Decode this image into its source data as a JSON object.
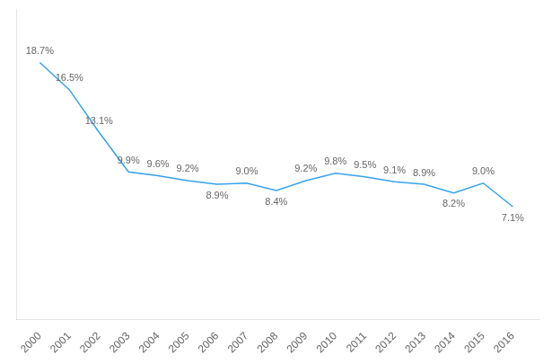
{
  "chart_data": {
    "type": "line",
    "x": [
      2000,
      2001,
      2002,
      2003,
      2004,
      2005,
      2006,
      2007,
      2008,
      2009,
      2010,
      2011,
      2012,
      2013,
      2014,
      2015,
      2016
    ],
    "values": [
      18.7,
      16.5,
      13.1,
      9.9,
      9.6,
      9.2,
      8.9,
      9.0,
      8.4,
      9.2,
      9.8,
      9.5,
      9.1,
      8.9,
      8.2,
      9.0,
      7.1
    ],
    "value_labels": [
      "18.7%",
      "16.5%",
      "13.1%",
      "9.9%",
      "9.6%",
      "9.2%",
      "8.9%",
      "9.0%",
      "8.4%",
      "9.2%",
      "9.8%",
      "9.5%",
      "9.1%",
      "8.9%",
      "8.2%",
      "9.0%",
      "7.1%"
    ],
    "xlim": [
      1999.2,
      2016.9
    ],
    "xticks": [
      2000,
      2001,
      2002,
      2003,
      2004,
      2005,
      2006,
      2007,
      2008,
      2009,
      2010,
      2011,
      2012,
      2013,
      2014,
      2015,
      2016
    ],
    "ylim": [
      -2,
      23
    ],
    "grid": false,
    "data_labels": true,
    "tick_labels": "x",
    "marker": "none",
    "line_style": "solid"
  }
}
